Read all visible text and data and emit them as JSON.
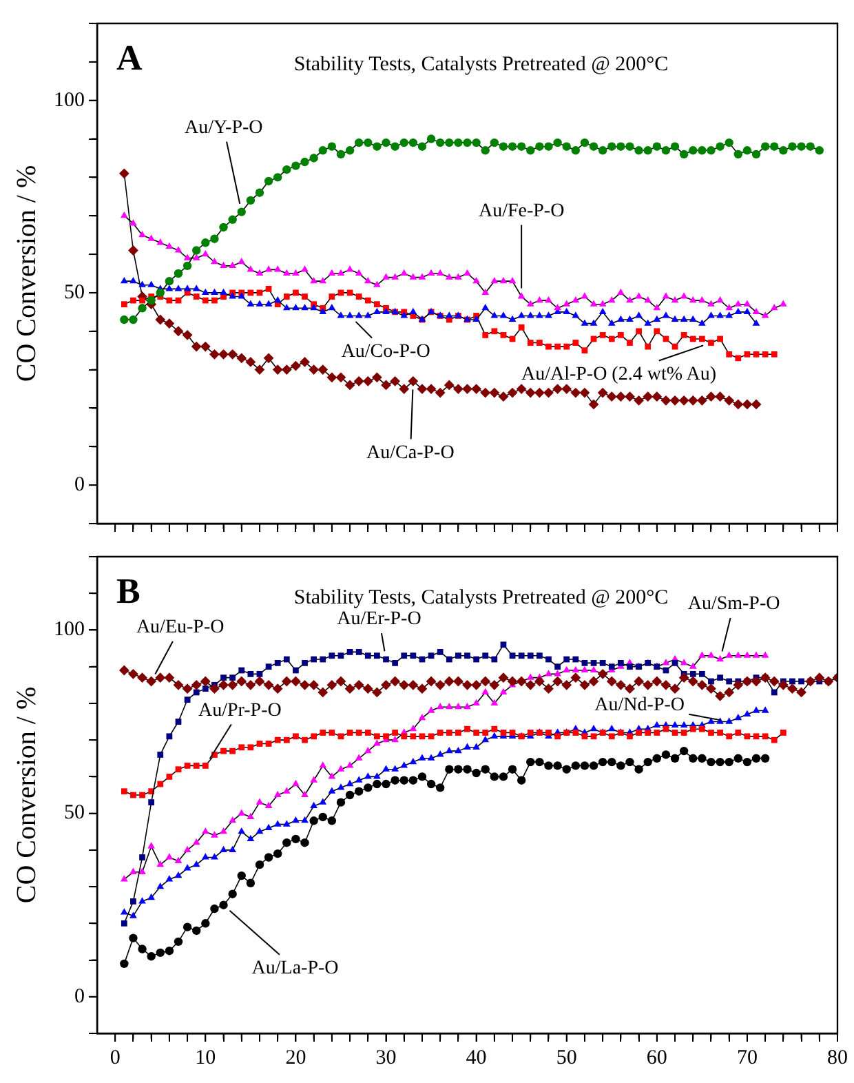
{
  "chart_data": [
    {
      "type": "line",
      "title": "Stability Tests, Catalysts Pretreated @ 200°C",
      "ylabel": "CO Conversion / %",
      "annotations": [
        "A",
        {
          "text": "Au/Y-P-O",
          "x": 14,
          "y": 71
        },
        {
          "text": "Au/Fe-P-O",
          "x": 45,
          "y": 49
        },
        {
          "text": "Au/Co-P-O",
          "x": 26,
          "y": 44
        },
        {
          "text": "Au/Al-P-O (2.4 wt% Au)",
          "x": 66,
          "y": 37
        },
        {
          "text": "Au/Ca-P-O",
          "x": 33,
          "y": 27
        }
      ],
      "x": [
        1,
        2,
        3,
        4,
        5,
        6,
        7,
        8,
        9,
        10,
        11,
        12,
        13,
        14,
        15,
        16,
        17,
        18,
        19,
        20,
        21,
        22,
        23,
        24,
        25,
        26,
        27,
        28,
        29,
        30,
        31,
        32,
        33,
        34,
        35,
        36,
        37,
        38,
        39,
        40,
        41,
        42,
        43,
        44,
        45,
        46,
        47,
        48,
        49,
        50,
        51,
        52,
        53,
        54,
        55,
        56,
        57,
        58,
        59,
        60,
        61,
        62,
        63,
        64,
        65,
        66,
        67,
        68,
        69,
        70,
        71,
        72,
        73,
        74,
        75,
        76,
        77,
        78
      ],
      "series": [
        {
          "color": "#008000",
          "marker": "circle",
          "values": [
            43,
            43,
            46,
            48,
            50,
            53,
            55,
            57,
            61,
            63,
            64,
            67,
            69,
            71,
            74,
            76,
            79,
            80,
            82,
            83,
            84,
            85,
            87,
            88,
            86,
            87,
            89,
            89,
            88,
            89,
            88,
            89,
            89,
            88,
            90,
            89,
            89,
            89,
            89,
            89,
            87,
            89,
            88,
            88,
            88,
            87,
            88,
            88,
            89,
            88,
            87,
            89,
            88,
            87,
            88,
            88,
            88,
            87,
            87,
            88,
            87,
            88,
            86,
            87,
            87,
            87,
            88,
            89,
            86,
            87,
            86,
            88,
            88,
            87,
            88,
            88,
            88,
            87
          ]
        },
        {
          "color": "#ff00ff",
          "marker": "triangle",
          "values": [
            70,
            68,
            65,
            64,
            63,
            62,
            61,
            59,
            59,
            60,
            58,
            57,
            57,
            58,
            56,
            55,
            56,
            56,
            55,
            55,
            56,
            53,
            53,
            55,
            55,
            56,
            55,
            53,
            52,
            54,
            54,
            55,
            54,
            54,
            55,
            55,
            54,
            54,
            55,
            53,
            50,
            53,
            53,
            53,
            49,
            47,
            48,
            48,
            46,
            47,
            48,
            49,
            47,
            47,
            48,
            50,
            48,
            49,
            48,
            46,
            49,
            48,
            49,
            48,
            48,
            47,
            48,
            46,
            47,
            47,
            45,
            44,
            46,
            47,
            null,
            null,
            null,
            null
          ]
        },
        {
          "color": "#0000ff",
          "marker": "triangle",
          "values": [
            53,
            53,
            52,
            52,
            51,
            51,
            51,
            51,
            51,
            50,
            50,
            50,
            49,
            49,
            47,
            47,
            47,
            48,
            46,
            46,
            46,
            46,
            45,
            46,
            44,
            44,
            44,
            44,
            45,
            45,
            45,
            44,
            45,
            43,
            45,
            44,
            44,
            44,
            43,
            43,
            46,
            44,
            44,
            43,
            44,
            44,
            44,
            44,
            45,
            45,
            44,
            42,
            42,
            45,
            42,
            43,
            43,
            44,
            42,
            43,
            44,
            43,
            43,
            43,
            42,
            44,
            44,
            44,
            45,
            45,
            42,
            null,
            null,
            null,
            null,
            null,
            null,
            null
          ]
        },
        {
          "color": "#ff0000",
          "marker": "square",
          "values": [
            47,
            48,
            48,
            49,
            49,
            48,
            48,
            50,
            49,
            48,
            48,
            49,
            50,
            50,
            50,
            50,
            51,
            47,
            49,
            50,
            49,
            47,
            46,
            49,
            50,
            50,
            49,
            48,
            47,
            46,
            45,
            45,
            44,
            43,
            45,
            44,
            43,
            44,
            43,
            44,
            39,
            40,
            39,
            38,
            41,
            37,
            37,
            36,
            36,
            36,
            37,
            35,
            38,
            39,
            38,
            39,
            37,
            40,
            36,
            40,
            38,
            36,
            39,
            38,
            38,
            37,
            38,
            34,
            33,
            34,
            34,
            34,
            34,
            null,
            null,
            null,
            null,
            null
          ]
        },
        {
          "color": "#800000",
          "marker": "diamond",
          "values": [
            81,
            61,
            49,
            47,
            43,
            42,
            40,
            39,
            36,
            36,
            34,
            34,
            34,
            33,
            32,
            30,
            33,
            30,
            30,
            31,
            32,
            30,
            30,
            28,
            28,
            26,
            27,
            27,
            28,
            26,
            27,
            25,
            27,
            25,
            25,
            24,
            26,
            25,
            25,
            25,
            24,
            24,
            23,
            24,
            25,
            24,
            24,
            24,
            25,
            25,
            24,
            24,
            21,
            24,
            23,
            23,
            23,
            22,
            23,
            23,
            22,
            22,
            22,
            22,
            22,
            23,
            23,
            22,
            21,
            21,
            21,
            null,
            null,
            null,
            null,
            null,
            null,
            null
          ]
        }
      ],
      "xlim": [
        -2,
        80
      ],
      "xticks": [
        {
          "value": 0,
          "label": null
        },
        {
          "value": 2,
          "label": null
        },
        {
          "value": 4,
          "label": null
        },
        {
          "value": 6,
          "label": null
        },
        {
          "value": 8,
          "label": null
        },
        {
          "value": 10,
          "label": null
        },
        {
          "value": 12,
          "label": null
        },
        {
          "value": 14,
          "label": null
        },
        {
          "value": 16,
          "label": null
        },
        {
          "value": 18,
          "label": null
        },
        {
          "value": 20,
          "label": null
        },
        {
          "value": 22,
          "label": null
        },
        {
          "value": 24,
          "label": null
        },
        {
          "value": 26,
          "label": null
        },
        {
          "value": 28,
          "label": null
        },
        {
          "value": 30,
          "label": null
        },
        {
          "value": 32,
          "label": null
        },
        {
          "value": 34,
          "label": null
        },
        {
          "value": 36,
          "label": null
        },
        {
          "value": 38,
          "label": null
        },
        {
          "value": 40,
          "label": null
        },
        {
          "value": 42,
          "label": null
        },
        {
          "value": 44,
          "label": null
        },
        {
          "value": 46,
          "label": null
        },
        {
          "value": 48,
          "label": null
        },
        {
          "value": 50,
          "label": null
        },
        {
          "value": 52,
          "label": null
        },
        {
          "value": 54,
          "label": null
        },
        {
          "value": 56,
          "label": null
        },
        {
          "value": 58,
          "label": null
        },
        {
          "value": 60,
          "label": null
        },
        {
          "value": 62,
          "label": null
        },
        {
          "value": 64,
          "label": null
        },
        {
          "value": 66,
          "label": null
        },
        {
          "value": 68,
          "label": null
        },
        {
          "value": 70,
          "label": null
        },
        {
          "value": 72,
          "label": null
        },
        {
          "value": 74,
          "label": null
        },
        {
          "value": 76,
          "label": null
        },
        {
          "value": 78,
          "label": null
        },
        {
          "value": 80,
          "label": null
        }
      ],
      "ylim": [
        -10,
        120
      ],
      "yticks": [
        {
          "value": -10,
          "label": null
        },
        0,
        {
          "value": 10,
          "label": null
        },
        {
          "value": 20,
          "label": null
        },
        {
          "value": 30,
          "label": null
        },
        {
          "value": 40,
          "label": null
        },
        50,
        {
          "value": 60,
          "label": null
        },
        {
          "value": 70,
          "label": null
        },
        {
          "value": 80,
          "label": null
        },
        {
          "value": 90,
          "label": null
        },
        100,
        {
          "value": 110,
          "label": null
        },
        {
          "value": 120,
          "label": null
        }
      ],
      "tick_labels": "y",
      "legend": false,
      "grid": false
    },
    {
      "type": "line",
      "title": "Stability Tests, Catalysts Pretreated @ 200°C",
      "ylabel": "CO Conversion / %",
      "annotations": [
        "B",
        {
          "text": "Au/Eu-P-O",
          "x": 4,
          "y": 86
        },
        {
          "text": "Au/Er-P-O",
          "x": 30,
          "y": 92
        },
        {
          "text": "Au/Sm-P-O",
          "x": 67,
          "y": 92
        },
        {
          "text": "Au/Pr-P-O",
          "x": 10,
          "y": 63
        },
        {
          "text": "Au/Nd-P-O",
          "x": 68,
          "y": 75
        },
        {
          "text": "Au/La-P-O",
          "x": 12,
          "y": 25
        }
      ],
      "x": [
        1,
        2,
        3,
        4,
        5,
        6,
        7,
        8,
        9,
        10,
        11,
        12,
        13,
        14,
        15,
        16,
        17,
        18,
        19,
        20,
        21,
        22,
        23,
        24,
        25,
        26,
        27,
        28,
        29,
        30,
        31,
        32,
        33,
        34,
        35,
        36,
        37,
        38,
        39,
        40,
        41,
        42,
        43,
        44,
        45,
        46,
        47,
        48,
        49,
        50,
        51,
        52,
        53,
        54,
        55,
        56,
        57,
        58,
        59,
        60,
        61,
        62,
        63,
        64,
        65,
        66,
        67,
        68,
        69,
        70,
        71,
        72,
        73,
        74,
        75,
        76,
        77,
        78,
        79,
        80
      ],
      "series": [
        {
          "color": "#800000",
          "marker": "diamond",
          "values": [
            89,
            88,
            87,
            86,
            87,
            87,
            85,
            84,
            85,
            86,
            84,
            85,
            85,
            86,
            85,
            86,
            85,
            84,
            86,
            86,
            85,
            85,
            83,
            85,
            86,
            84,
            85,
            84,
            83,
            85,
            86,
            85,
            85,
            84,
            86,
            85,
            86,
            86,
            85,
            85,
            86,
            85,
            87,
            86,
            86,
            85,
            86,
            84,
            86,
            85,
            87,
            85,
            86,
            88,
            86,
            85,
            84,
            86,
            85,
            86,
            85,
            84,
            87,
            86,
            85,
            84,
            82,
            83,
            85,
            86,
            86,
            87,
            86,
            85,
            84,
            83,
            86,
            87,
            86,
            87
          ]
        },
        {
          "color": "#000080",
          "marker": "square",
          "values": [
            20,
            26,
            38,
            53,
            66,
            71,
            75,
            81,
            83,
            84,
            85,
            87,
            87,
            89,
            88,
            88,
            90,
            91,
            92,
            89,
            91,
            92,
            92,
            93,
            93,
            94,
            94,
            93,
            93,
            92,
            91,
            93,
            93,
            92,
            93,
            94,
            92,
            93,
            93,
            92,
            93,
            92,
            96,
            93,
            93,
            93,
            93,
            92,
            90,
            92,
            92,
            91,
            91,
            91,
            90,
            91,
            90,
            90,
            91,
            90,
            89,
            91,
            88,
            88,
            88,
            86,
            87,
            86,
            86,
            86,
            87,
            87,
            83,
            86,
            86,
            86,
            86,
            86,
            86,
            87
          ]
        },
        {
          "color": "#ff0000",
          "marker": "square",
          "values": [
            56,
            55,
            55,
            56,
            58,
            60,
            62,
            63,
            63,
            63,
            66,
            67,
            67,
            68,
            68,
            69,
            69,
            70,
            70,
            71,
            70,
            71,
            72,
            72,
            71,
            72,
            72,
            72,
            71,
            71,
            72,
            71,
            71,
            71,
            71,
            72,
            72,
            72,
            73,
            72,
            72,
            73,
            72,
            72,
            71,
            72,
            72,
            72,
            71,
            72,
            72,
            71,
            71,
            72,
            71,
            72,
            71,
            72,
            72,
            72,
            73,
            72,
            72,
            73,
            73,
            72,
            72,
            71,
            72,
            71,
            71,
            71,
            70,
            72,
            null,
            null,
            null,
            null,
            null,
            null
          ]
        },
        {
          "color": "#ff00ff",
          "marker": "triangle",
          "values": [
            32,
            34,
            34,
            41,
            36,
            38,
            37,
            40,
            42,
            45,
            44,
            45,
            48,
            50,
            49,
            53,
            52,
            55,
            56,
            58,
            55,
            59,
            63,
            60,
            62,
            63,
            65,
            67,
            69,
            70,
            70,
            72,
            73,
            76,
            78,
            79,
            79,
            79,
            79,
            80,
            83,
            80,
            83,
            85,
            86,
            87,
            87,
            88,
            88,
            89,
            89,
            89,
            89,
            88,
            89,
            90,
            91,
            90,
            91,
            90,
            91,
            92,
            91,
            90,
            93,
            93,
            92,
            93,
            93,
            93,
            93,
            93,
            null,
            null,
            null,
            null,
            null,
            null,
            null,
            null
          ]
        },
        {
          "color": "#0000ff",
          "marker": "triangle",
          "values": [
            23,
            22,
            26,
            27,
            30,
            32,
            33,
            35,
            36,
            38,
            38,
            40,
            40,
            45,
            43,
            45,
            46,
            47,
            47,
            48,
            48,
            52,
            53,
            56,
            57,
            58,
            59,
            60,
            60,
            62,
            62,
            63,
            64,
            65,
            65,
            66,
            67,
            67,
            68,
            68,
            70,
            71,
            71,
            71,
            71,
            71,
            72,
            71,
            72,
            72,
            73,
            72,
            73,
            72,
            73,
            72,
            72,
            73,
            73,
            74,
            74,
            74,
            74,
            74,
            74,
            75,
            75,
            75,
            76,
            77,
            78,
            78,
            null,
            null,
            null,
            null,
            null,
            null,
            null,
            null
          ]
        },
        {
          "color": "#000000",
          "marker": "circle",
          "values": [
            9,
            16,
            13,
            11,
            12,
            12.5,
            15,
            19,
            18,
            20,
            24,
            25,
            28,
            33,
            31,
            36,
            38,
            39,
            42,
            43,
            42,
            48,
            49,
            48,
            53,
            55,
            56,
            57,
            58,
            58,
            59,
            59,
            59,
            60,
            58,
            57,
            62,
            62,
            62,
            61,
            62,
            60,
            60,
            62,
            59,
            64,
            64,
            63,
            63,
            62,
            63,
            63,
            63,
            64,
            64,
            63,
            64,
            62,
            64,
            65,
            66,
            65,
            67,
            65,
            65,
            64,
            64,
            64,
            65,
            64,
            65,
            65,
            null,
            null,
            null,
            null,
            null,
            null,
            null,
            null
          ]
        }
      ],
      "xlim": [
        -2,
        80
      ],
      "xticks": [
        0,
        {
          "value": 2,
          "label": null
        },
        {
          "value": 4,
          "label": null
        },
        {
          "value": 6,
          "label": null
        },
        {
          "value": 8,
          "label": null
        },
        10,
        {
          "value": 12,
          "label": null
        },
        {
          "value": 14,
          "label": null
        },
        {
          "value": 16,
          "label": null
        },
        {
          "value": 18,
          "label": null
        },
        20,
        {
          "value": 22,
          "label": null
        },
        {
          "value": 24,
          "label": null
        },
        {
          "value": 26,
          "label": null
        },
        {
          "value": 28,
          "label": null
        },
        30,
        {
          "value": 32,
          "label": null
        },
        {
          "value": 34,
          "label": null
        },
        {
          "value": 36,
          "label": null
        },
        {
          "value": 38,
          "label": null
        },
        40,
        {
          "value": 42,
          "label": null
        },
        {
          "value": 44,
          "label": null
        },
        {
          "value": 46,
          "label": null
        },
        {
          "value": 48,
          "label": null
        },
        50,
        {
          "value": 52,
          "label": null
        },
        {
          "value": 54,
          "label": null
        },
        {
          "value": 56,
          "label": null
        },
        {
          "value": 58,
          "label": null
        },
        60,
        {
          "value": 62,
          "label": null
        },
        {
          "value": 64,
          "label": null
        },
        {
          "value": 66,
          "label": null
        },
        {
          "value": 68,
          "label": null
        },
        70,
        {
          "value": 72,
          "label": null
        },
        {
          "value": 74,
          "label": null
        },
        {
          "value": 76,
          "label": null
        },
        {
          "value": 78,
          "label": null
        },
        80
      ],
      "ylim": [
        -10,
        120
      ],
      "yticks": [
        {
          "value": -10,
          "label": null
        },
        0,
        {
          "value": 10,
          "label": null
        },
        {
          "value": 20,
          "label": null
        },
        {
          "value": 30,
          "label": null
        },
        {
          "value": 40,
          "label": null
        },
        50,
        {
          "value": 60,
          "label": null
        },
        {
          "value": 70,
          "label": null
        },
        {
          "value": 80,
          "label": null
        },
        {
          "value": 90,
          "label": null
        },
        100,
        {
          "value": 110,
          "label": null
        },
        {
          "value": 120,
          "label": null
        }
      ],
      "legend": false,
      "grid": false
    }
  ]
}
